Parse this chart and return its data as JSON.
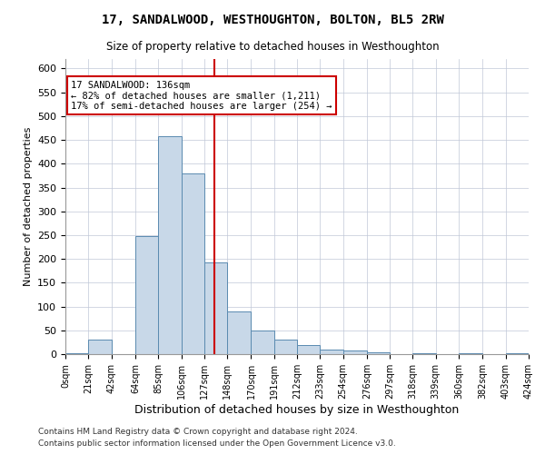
{
  "title": "17, SANDALWOOD, WESTHOUGHTON, BOLTON, BL5 2RW",
  "subtitle": "Size of property relative to detached houses in Westhoughton",
  "xlabel": "Distribution of detached houses by size in Westhoughton",
  "ylabel": "Number of detached properties",
  "footnote1": "Contains HM Land Registry data © Crown copyright and database right 2024.",
  "footnote2": "Contains public sector information licensed under the Open Government Licence v3.0.",
  "annotation_line1": "17 SANDALWOOD: 136sqm",
  "annotation_line2": "← 82% of detached houses are smaller (1,211)",
  "annotation_line3": "17% of semi-detached houses are larger (254) →",
  "property_size": 136,
  "bar_color": "#c8d8e8",
  "bar_edge_color": "#5a8ab0",
  "vline_color": "#cc0000",
  "annotation_box_color": "#cc0000",
  "background_color": "#ffffff",
  "grid_color": "#c0c8d8",
  "bin_edges": [
    0,
    21,
    42,
    64,
    85,
    106,
    127,
    148,
    170,
    191,
    212,
    233,
    254,
    276,
    297,
    318,
    339,
    360,
    382,
    403,
    424
  ],
  "bin_labels": [
    "0sqm",
    "21sqm",
    "42sqm",
    "64sqm",
    "85sqm",
    "106sqm",
    "127sqm",
    "148sqm",
    "170sqm",
    "191sqm",
    "212sqm",
    "233sqm",
    "254sqm",
    "276sqm",
    "297sqm",
    "318sqm",
    "339sqm",
    "360sqm",
    "382sqm",
    "403sqm",
    "424sqm"
  ],
  "counts": [
    1,
    30,
    0,
    248,
    458,
    380,
    192,
    90,
    50,
    30,
    20,
    10,
    8,
    3,
    0,
    2,
    0,
    1,
    0,
    1
  ],
  "ylim": [
    0,
    620
  ],
  "yticks": [
    0,
    50,
    100,
    150,
    200,
    250,
    300,
    350,
    400,
    450,
    500,
    550,
    600
  ]
}
